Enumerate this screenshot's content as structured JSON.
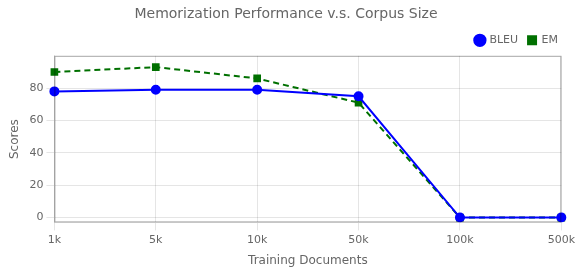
{
  "chart_data": {
    "type": "line",
    "title": "Memorization Performance v.s. Corpus Size",
    "xlabel": "Training Documents",
    "ylabel": "Scores",
    "categories": [
      "1k",
      "5k",
      "10k",
      "50k",
      "100k",
      "500k"
    ],
    "series": [
      {
        "name": "BLEU",
        "color": "#0000ff",
        "values": [
          78,
          79,
          79,
          75,
          0,
          0
        ],
        "marker": "circle",
        "line_style": "solid"
      },
      {
        "name": "EM",
        "color": "#007000",
        "values": [
          90,
          93,
          86,
          71,
          0,
          0
        ],
        "marker": "square",
        "line_style": "dashed"
      }
    ],
    "ylim": [
      -3,
      100
    ],
    "yticks": [
      0,
      20,
      40,
      60,
      80
    ],
    "grid": true,
    "legend": "upper right"
  }
}
